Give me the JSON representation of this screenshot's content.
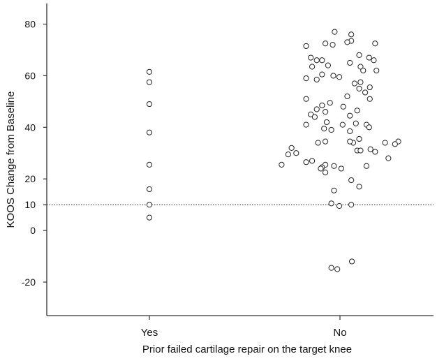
{
  "chart_data": {
    "type": "scatter",
    "title": "",
    "xlabel": "Prior failed cartilage repair on the target knee",
    "ylabel": "KOOS Change from Baseline",
    "categories": [
      "Yes",
      "No"
    ],
    "yticks": [
      80,
      60,
      40,
      20,
      10,
      0,
      -20
    ],
    "ytick_labels": [
      "80",
      "60",
      "40",
      "20",
      "10",
      "0",
      "-20"
    ],
    "ylim": [
      -33,
      88
    ],
    "reference_line": {
      "y": 10,
      "style": "dotted"
    },
    "grid": false,
    "legend": "none",
    "marker": "open-circle",
    "series": [
      {
        "category": "Yes",
        "points": [
          {
            "x": 0,
            "y": 61.5
          },
          {
            "x": 0,
            "y": 57.5
          },
          {
            "x": 0,
            "y": 49
          },
          {
            "x": 0,
            "y": 38
          },
          {
            "x": 0,
            "y": 25.5
          },
          {
            "x": 0,
            "y": 16
          },
          {
            "x": 0,
            "y": 10
          },
          {
            "x": 0,
            "y": 5
          }
        ]
      },
      {
        "category": "No",
        "points": [
          {
            "x": -0.08,
            "y": 77
          },
          {
            "x": 0.17,
            "y": 76
          },
          {
            "x": 0.17,
            "y": 73.5
          },
          {
            "x": 0.11,
            "y": 73
          },
          {
            "x": 0.53,
            "y": 72.5
          },
          {
            "x": -0.51,
            "y": 71.5
          },
          {
            "x": -0.22,
            "y": 72.5
          },
          {
            "x": -0.11,
            "y": 72
          },
          {
            "x": 0.29,
            "y": 68
          },
          {
            "x": 0.44,
            "y": 67
          },
          {
            "x": -0.44,
            "y": 67
          },
          {
            "x": -0.35,
            "y": 66
          },
          {
            "x": -0.27,
            "y": 66
          },
          {
            "x": 0.51,
            "y": 66
          },
          {
            "x": 0.15,
            "y": 65
          },
          {
            "x": -0.18,
            "y": 64
          },
          {
            "x": 0.31,
            "y": 63.5
          },
          {
            "x": -0.42,
            "y": 63.5
          },
          {
            "x": 0.35,
            "y": 62
          },
          {
            "x": 0.55,
            "y": 62
          },
          {
            "x": -0.27,
            "y": 60.5
          },
          {
            "x": -0.1,
            "y": 60
          },
          {
            "x": -0.35,
            "y": 58.5
          },
          {
            "x": -0.51,
            "y": 59
          },
          {
            "x": -0.01,
            "y": 59.5
          },
          {
            "x": 0.31,
            "y": 57.5
          },
          {
            "x": 0.22,
            "y": 57
          },
          {
            "x": 0.29,
            "y": 55
          },
          {
            "x": 0.45,
            "y": 55.5
          },
          {
            "x": 0.38,
            "y": 53.5
          },
          {
            "x": 0.11,
            "y": 52
          },
          {
            "x": 0.45,
            "y": 51
          },
          {
            "x": -0.51,
            "y": 51
          },
          {
            "x": -0.15,
            "y": 49.5
          },
          {
            "x": -0.27,
            "y": 48.5
          },
          {
            "x": 0.05,
            "y": 48
          },
          {
            "x": -0.35,
            "y": 47
          },
          {
            "x": 0.26,
            "y": 46.5
          },
          {
            "x": -0.22,
            "y": 46
          },
          {
            "x": -0.44,
            "y": 45
          },
          {
            "x": -0.38,
            "y": 44
          },
          {
            "x": 0.15,
            "y": 44.5
          },
          {
            "x": -0.2,
            "y": 42
          },
          {
            "x": 0.24,
            "y": 41.5
          },
          {
            "x": -0.51,
            "y": 41
          },
          {
            "x": 0.4,
            "y": 41
          },
          {
            "x": 0.44,
            "y": 40
          },
          {
            "x": 0.04,
            "y": 41
          },
          {
            "x": -0.24,
            "y": 39.5
          },
          {
            "x": -0.13,
            "y": 39
          },
          {
            "x": 0.15,
            "y": 38.5
          },
          {
            "x": 0.29,
            "y": 35.5
          },
          {
            "x": -0.33,
            "y": 34
          },
          {
            "x": -0.22,
            "y": 34.5
          },
          {
            "x": 0.2,
            "y": 34
          },
          {
            "x": 0.15,
            "y": 34.5
          },
          {
            "x": 0.68,
            "y": 34
          },
          {
            "x": 0.88,
            "y": 34.5
          },
          {
            "x": 0.83,
            "y": 33.5
          },
          {
            "x": -0.73,
            "y": 32
          },
          {
            "x": 0.26,
            "y": 31
          },
          {
            "x": 0.31,
            "y": 31
          },
          {
            "x": 0.46,
            "y": 31.5
          },
          {
            "x": 0.53,
            "y": 30.5
          },
          {
            "x": -0.66,
            "y": 30
          },
          {
            "x": -0.78,
            "y": 29.5
          },
          {
            "x": 0.73,
            "y": 28
          },
          {
            "x": -0.42,
            "y": 27
          },
          {
            "x": -0.51,
            "y": 26.5
          },
          {
            "x": -0.22,
            "y": 25.5
          },
          {
            "x": -0.09,
            "y": 25
          },
          {
            "x": 0.4,
            "y": 25
          },
          {
            "x": -0.88,
            "y": 25.5
          },
          {
            "x": -0.27,
            "y": 24.5
          },
          {
            "x": 0.02,
            "y": 24
          },
          {
            "x": -0.29,
            "y": 24
          },
          {
            "x": -0.22,
            "y": 22.5
          },
          {
            "x": 0.17,
            "y": 19.5
          },
          {
            "x": 0.29,
            "y": 17
          },
          {
            "x": -0.09,
            "y": 15.5
          },
          {
            "x": -0.13,
            "y": 10.5
          },
          {
            "x": -0.01,
            "y": 9.5
          },
          {
            "x": 0.17,
            "y": 10
          },
          {
            "x": -0.13,
            "y": -14.5
          },
          {
            "x": -0.04,
            "y": -15
          },
          {
            "x": 0.18,
            "y": -12
          }
        ]
      }
    ]
  }
}
